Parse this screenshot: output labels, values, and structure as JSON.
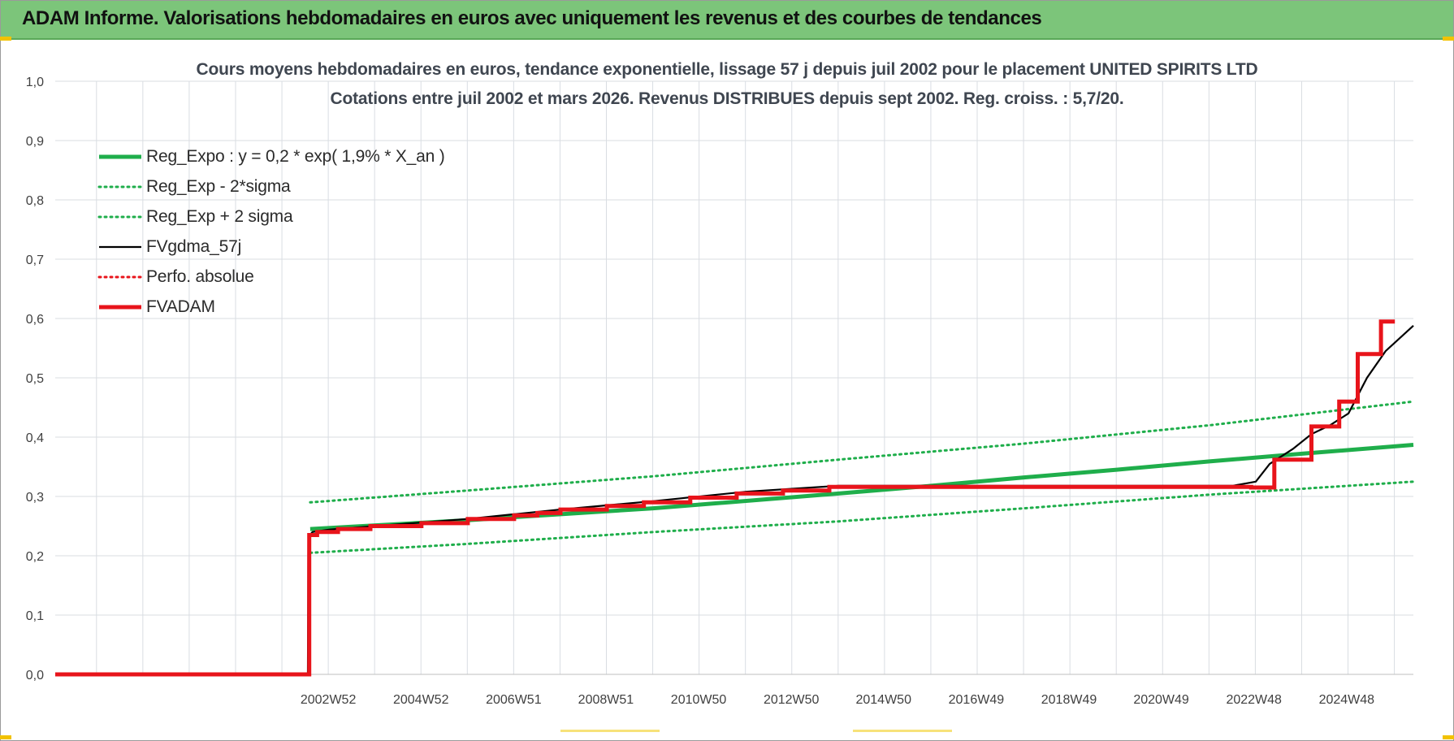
{
  "header": {
    "title": "ADAM Informe. Valorisations hebdomadaires en euros avec uniquement les revenus et des courbes de tendances"
  },
  "colors": {
    "header_bg": "#7cc57a",
    "reg_expo": "#1fae4b",
    "fvgdma": "#000000",
    "fvadam": "#e8141b",
    "grid": "#d9dde2"
  },
  "chart_data": {
    "type": "line",
    "title_lines": [
      "Cours moyens hebdomadaires en euros, tendance exponentielle, lissage 57 j depuis juil 2002 pour le placement UNITED SPIRITS LTD",
      "Cotations entre juil 2002 et mars 2026. Revenus DISTRIBUES depuis sept 2002. Reg. croiss. : 5,7/20."
    ],
    "xlabel": "",
    "ylabel": "",
    "ylim": [
      0,
      1.0
    ],
    "xlim": [
      1997.1,
      2026.4
    ],
    "y_ticks": [
      "0,0",
      "0,1",
      "0,2",
      "0,3",
      "0,4",
      "0,5",
      "0,6",
      "0,7",
      "0,8",
      "0,9",
      "1,0"
    ],
    "x_ticks": [
      {
        "label": "2002W52",
        "x": 2002.99
      },
      {
        "label": "2004W52",
        "x": 2004.99
      },
      {
        "label": "2006W51",
        "x": 2006.99
      },
      {
        "label": "2008W51",
        "x": 2008.98
      },
      {
        "label": "2010W50",
        "x": 2010.98
      },
      {
        "label": "2012W50",
        "x": 2012.98
      },
      {
        "label": "2014W50",
        "x": 2014.97
      },
      {
        "label": "2016W49",
        "x": 2016.97
      },
      {
        "label": "2018W49",
        "x": 2018.97
      },
      {
        "label": "2020W49",
        "x": 2020.96
      },
      {
        "label": "2022W48",
        "x": 2022.96
      },
      {
        "label": "2024W48",
        "x": 2024.96
      }
    ],
    "legend": [
      {
        "name": "Reg_Expo : y = 0,2 * exp( 1,9% *  X_an )",
        "style": "solid-thick",
        "color": "#1fae4b"
      },
      {
        "name": "Reg_Exp - 2*sigma",
        "style": "dotted",
        "color": "#1fae4b"
      },
      {
        "name": "Reg_Exp + 2 sigma",
        "style": "dotted",
        "color": "#1fae4b"
      },
      {
        "name": "FVgdma_57j",
        "style": "solid-thin",
        "color": "#000000"
      },
      {
        "name": "Perfo. absolue",
        "style": "dotted",
        "color": "#e8141b"
      },
      {
        "name": "FVADAM",
        "style": "solid-thick",
        "color": "#e8141b"
      }
    ],
    "series": [
      {
        "name": "Reg_Expo : y = 0,2 * exp( 1,9% *  X_an )",
        "x": [
          2002.6,
          2006,
          2010,
          2014,
          2016,
          2018,
          2020,
          2022,
          2024,
          2026.4
        ],
        "y": [
          0.245,
          0.26,
          0.28,
          0.305,
          0.318,
          0.332,
          0.345,
          0.359,
          0.372,
          0.387
        ]
      },
      {
        "name": "Reg_Exp - 2*sigma",
        "x": [
          2002.6,
          2006,
          2010,
          2014,
          2018,
          2022,
          2026.4
        ],
        "y": [
          0.205,
          0.22,
          0.24,
          0.258,
          0.28,
          0.303,
          0.325
        ]
      },
      {
        "name": "Reg_Exp + 2 sigma",
        "x": [
          2002.6,
          2006,
          2010,
          2014,
          2018,
          2022,
          2026.4
        ],
        "y": [
          0.29,
          0.31,
          0.334,
          0.362,
          0.389,
          0.42,
          0.46
        ]
      },
      {
        "name": "FVgdma_57j",
        "x": [
          1997.1,
          2002.55,
          2002.56,
          2002.65,
          2003.0,
          2004.0,
          2006.0,
          2007.0,
          2008.0,
          2010.0,
          2012.0,
          2014.0,
          2016.0,
          2020.0,
          2022.5,
          2023.0,
          2023.3,
          2023.8,
          2024.2,
          2024.6,
          2025.0,
          2025.4,
          2025.8,
          2026.4
        ],
        "y": [
          0.0,
          0.0,
          0.232,
          0.24,
          0.244,
          0.25,
          0.262,
          0.27,
          0.278,
          0.292,
          0.308,
          0.318,
          0.318,
          0.318,
          0.318,
          0.325,
          0.355,
          0.38,
          0.405,
          0.42,
          0.44,
          0.5,
          0.545,
          0.588
        ]
      },
      {
        "name": "FVADAM",
        "x": [
          1997.1,
          2002.58,
          2002.58,
          2002.75,
          2002.75,
          2003.2,
          2003.2,
          2003.9,
          2003.9,
          2005.0,
          2005.0,
          2006.0,
          2006.0,
          2007.0,
          2007.0,
          2007.5,
          2007.5,
          2008.0,
          2008.0,
          2009.0,
          2009.0,
          2009.8,
          2009.8,
          2010.8,
          2010.8,
          2011.8,
          2011.8,
          2012.8,
          2012.8,
          2013.8,
          2013.8,
          2022.9,
          2022.9,
          2023.4,
          2023.4,
          2024.2,
          2024.2,
          2024.8,
          2024.8,
          2025.2,
          2025.2,
          2025.7,
          2025.7,
          2026.0
        ],
        "y": [
          0.0,
          0.0,
          0.235,
          0.235,
          0.24,
          0.24,
          0.245,
          0.245,
          0.25,
          0.25,
          0.255,
          0.255,
          0.262,
          0.262,
          0.268,
          0.268,
          0.272,
          0.272,
          0.278,
          0.278,
          0.284,
          0.284,
          0.29,
          0.29,
          0.298,
          0.298,
          0.305,
          0.305,
          0.31,
          0.31,
          0.316,
          0.316,
          0.315,
          0.315,
          0.362,
          0.362,
          0.418,
          0.418,
          0.46,
          0.46,
          0.54,
          0.54,
          0.595,
          0.595
        ]
      }
    ]
  }
}
